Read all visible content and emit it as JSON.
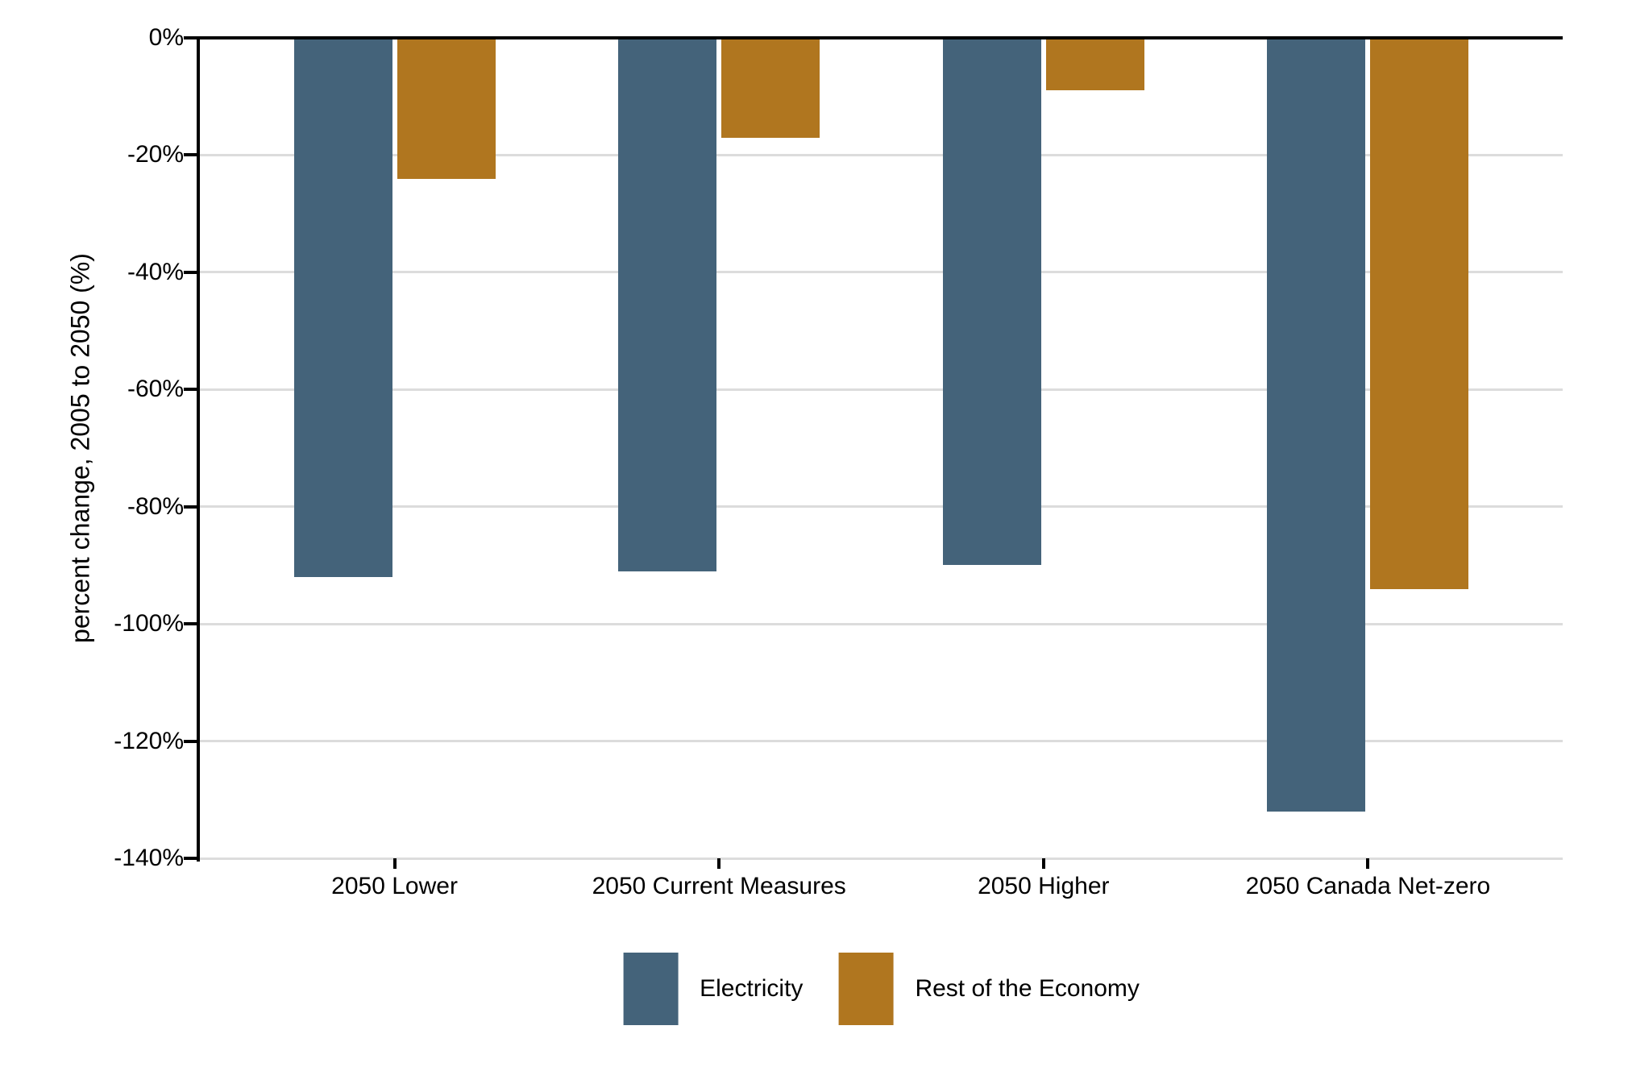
{
  "chart_data": {
    "type": "bar",
    "title": "",
    "categories": [
      "2050 Lower",
      "2050 Current Measures",
      "2050 Higher",
      "2050 Canada Net-zero"
    ],
    "series": [
      {
        "name": "Electricity",
        "color": "#44637a",
        "values": [
          -92,
          -91,
          -90,
          -132
        ]
      },
      {
        "name": "Rest of the Economy",
        "color": "#b0761f",
        "values": [
          -24,
          -17,
          -9,
          -94
        ]
      }
    ],
    "xlabel": "",
    "ylabel": "percent change, 2005 to 2050 (%)",
    "ylim": [
      -140,
      0
    ],
    "ytick_labels": [
      "0%",
      "-20%",
      "-40%",
      "-60%",
      "-80%",
      "-100%",
      "-120%",
      "-140%"
    ],
    "ytick_values": [
      0,
      -20,
      -40,
      -60,
      -80,
      -100,
      -120,
      -140
    ],
    "grid": "horizontal-light-gray",
    "legend_position": "bottom-center"
  },
  "colors": {
    "background": "#ffffff",
    "grid": "#dcdcdc",
    "axis": "#000000",
    "text": "#000000",
    "electricity": "#44637a",
    "rest_of_economy": "#b0761f"
  }
}
